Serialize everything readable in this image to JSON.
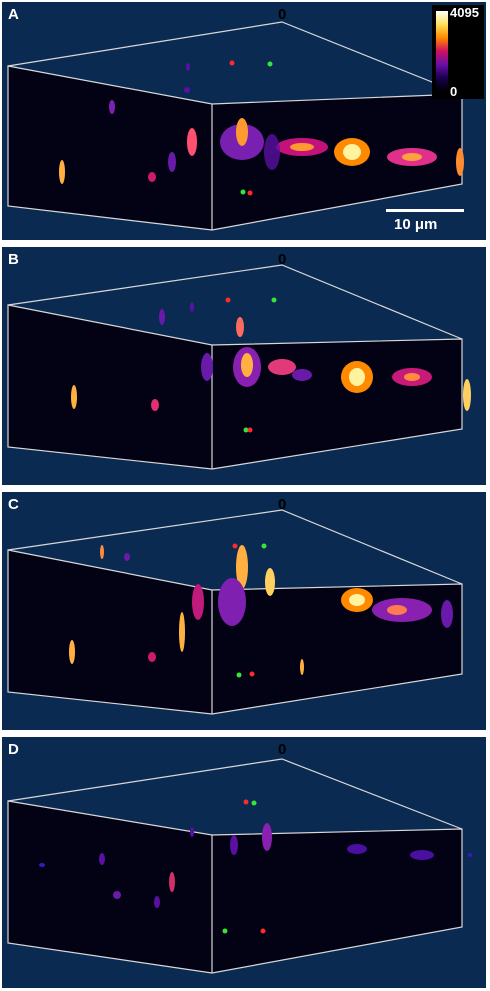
{
  "panels": [
    {
      "label": "A"
    },
    {
      "label": "B"
    },
    {
      "label": "C"
    },
    {
      "label": "D"
    }
  ],
  "axis_zero_label": "0",
  "colorbar": {
    "max_label": "4095",
    "min_label": "0"
  },
  "scale_bar_label": "10 μm",
  "colors": {
    "background": "#0b2a52",
    "volume": "#000015",
    "box_edge": "#d8d8d8",
    "marker_red": "#ff2a2a",
    "marker_green": "#36e636"
  }
}
